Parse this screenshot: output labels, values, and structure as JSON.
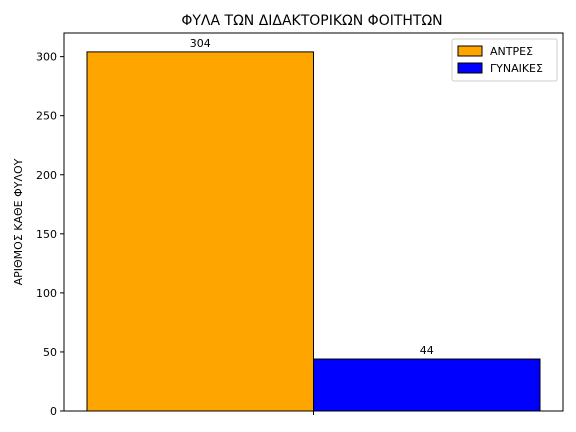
{
  "chart_data": {
    "type": "bar",
    "title": "ΦΥΛΑ ΤΩΝ ΔΙΔΑΚΤΟΡΙΚΩΝ ΦΟΙΤΗΤΩΝ",
    "xlabel": "",
    "ylabel": "ΑΡΙΘΜΟΣ ΚΑΘΕ ΦΥΛΟΥ",
    "ylim": [
      0,
      320
    ],
    "yticks": [
      0,
      50,
      100,
      150,
      200,
      250,
      300
    ],
    "legend_position": "top-right",
    "grid": false,
    "series": [
      {
        "name": "ΑΝΤΡΕΣ",
        "value": 304,
        "label": "304",
        "color": "#ffa500"
      },
      {
        "name": "ΓΥΝΑΙΚΕΣ",
        "value": 44,
        "label": "44",
        "color": "#0000ff"
      }
    ]
  }
}
